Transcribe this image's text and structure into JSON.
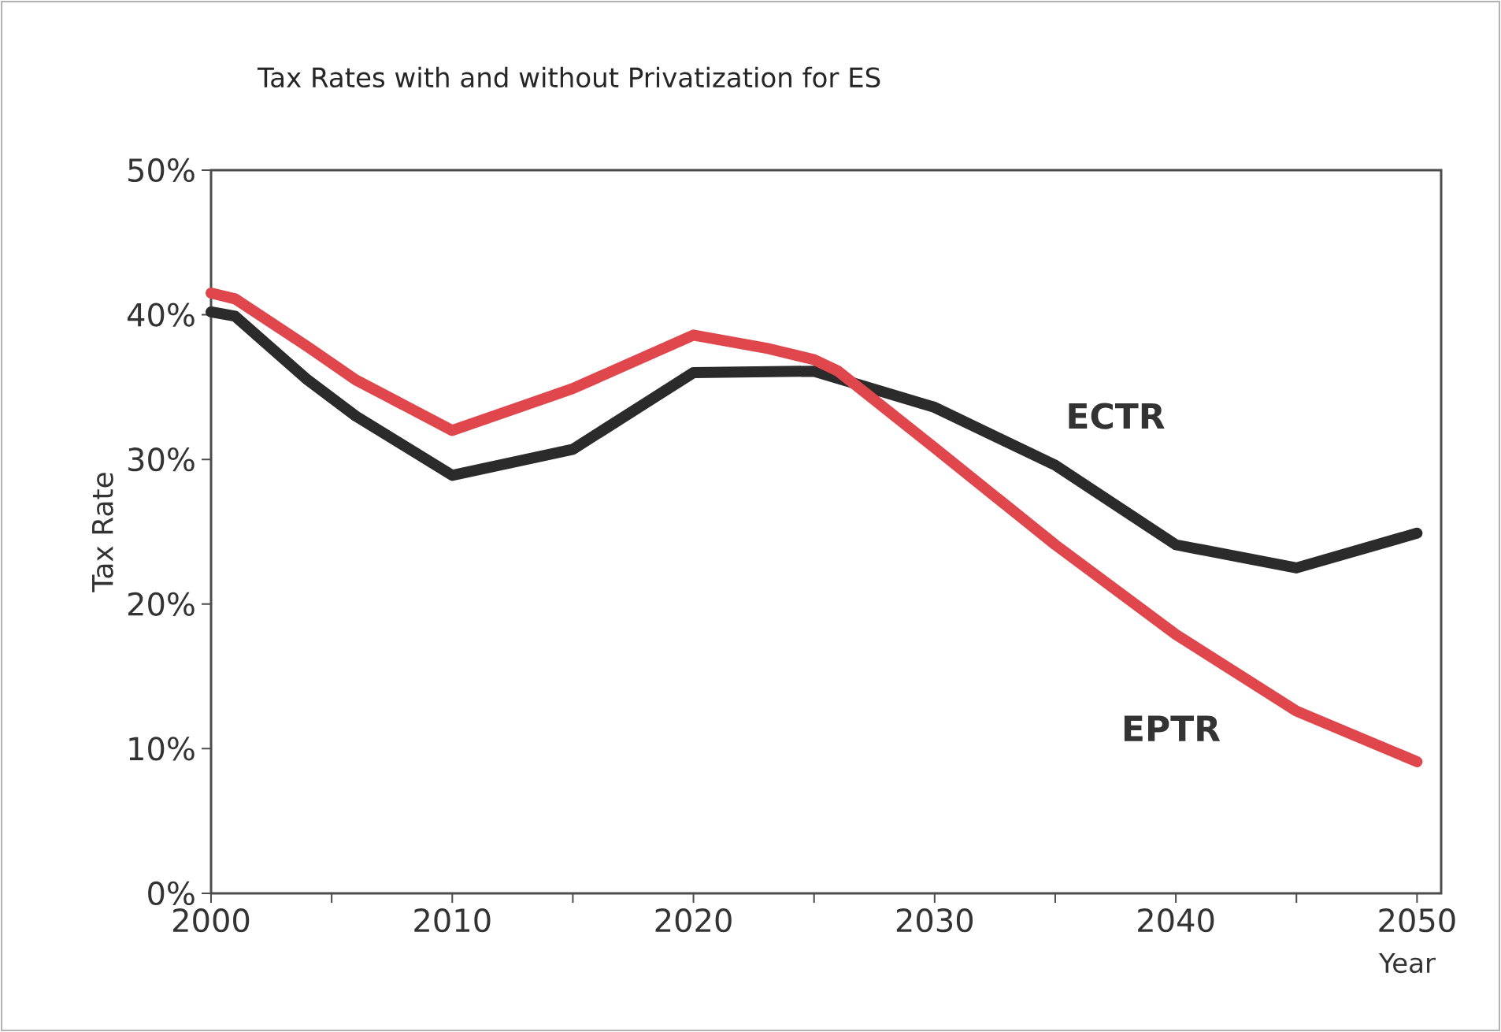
{
  "chart_data": {
    "type": "line",
    "title": "Tax Rates with and without Privatization for ES",
    "xlabel": "Year",
    "ylabel": "Tax Rate",
    "xlim": [
      2000,
      2051
    ],
    "xticks": [
      2000,
      {
        "value": 2005,
        "label": null
      },
      2010,
      {
        "value": 2015,
        "label": null
      },
      2020,
      {
        "value": 2025,
        "label": null
      },
      2030,
      {
        "value": 2035,
        "label": null
      },
      2040,
      {
        "value": 2045,
        "label": null
      },
      2050
    ],
    "ylim": [
      0,
      50
    ],
    "yticks": [
      {
        "value": 0,
        "label": "0%"
      },
      {
        "value": 10,
        "label": "10%"
      },
      {
        "value": 20,
        "label": "20%"
      },
      {
        "value": 30,
        "label": "30%"
      },
      {
        "value": 40,
        "label": "40%"
      },
      {
        "value": 50,
        "label": "50%"
      }
    ],
    "grid": false,
    "legend": false,
    "marker": "none",
    "line_style": "solid",
    "series": [
      {
        "name": "ECTR",
        "color": "#2b2b2b",
        "x": [
          2000,
          2001,
          2004,
          2006,
          2010,
          2015,
          2020,
          2025,
          2030,
          2035,
          2040,
          2045,
          2050
        ],
        "values": [
          40.2,
          39.9,
          35.5,
          33.0,
          28.9,
          30.7,
          36.0,
          36.1,
          33.6,
          29.6,
          24.1,
          22.5,
          24.9
        ]
      },
      {
        "name": "EPTR",
        "color": "#e0474c",
        "x": [
          2000,
          2001,
          2004,
          2006,
          2010,
          2015,
          2020,
          2023,
          2025,
          2026,
          2030,
          2035,
          2040,
          2045,
          2050
        ],
        "values": [
          41.5,
          41.1,
          37.8,
          35.5,
          32.0,
          34.9,
          38.6,
          37.7,
          36.9,
          36.1,
          30.8,
          24.1,
          17.9,
          12.6,
          9.1
        ]
      }
    ]
  }
}
